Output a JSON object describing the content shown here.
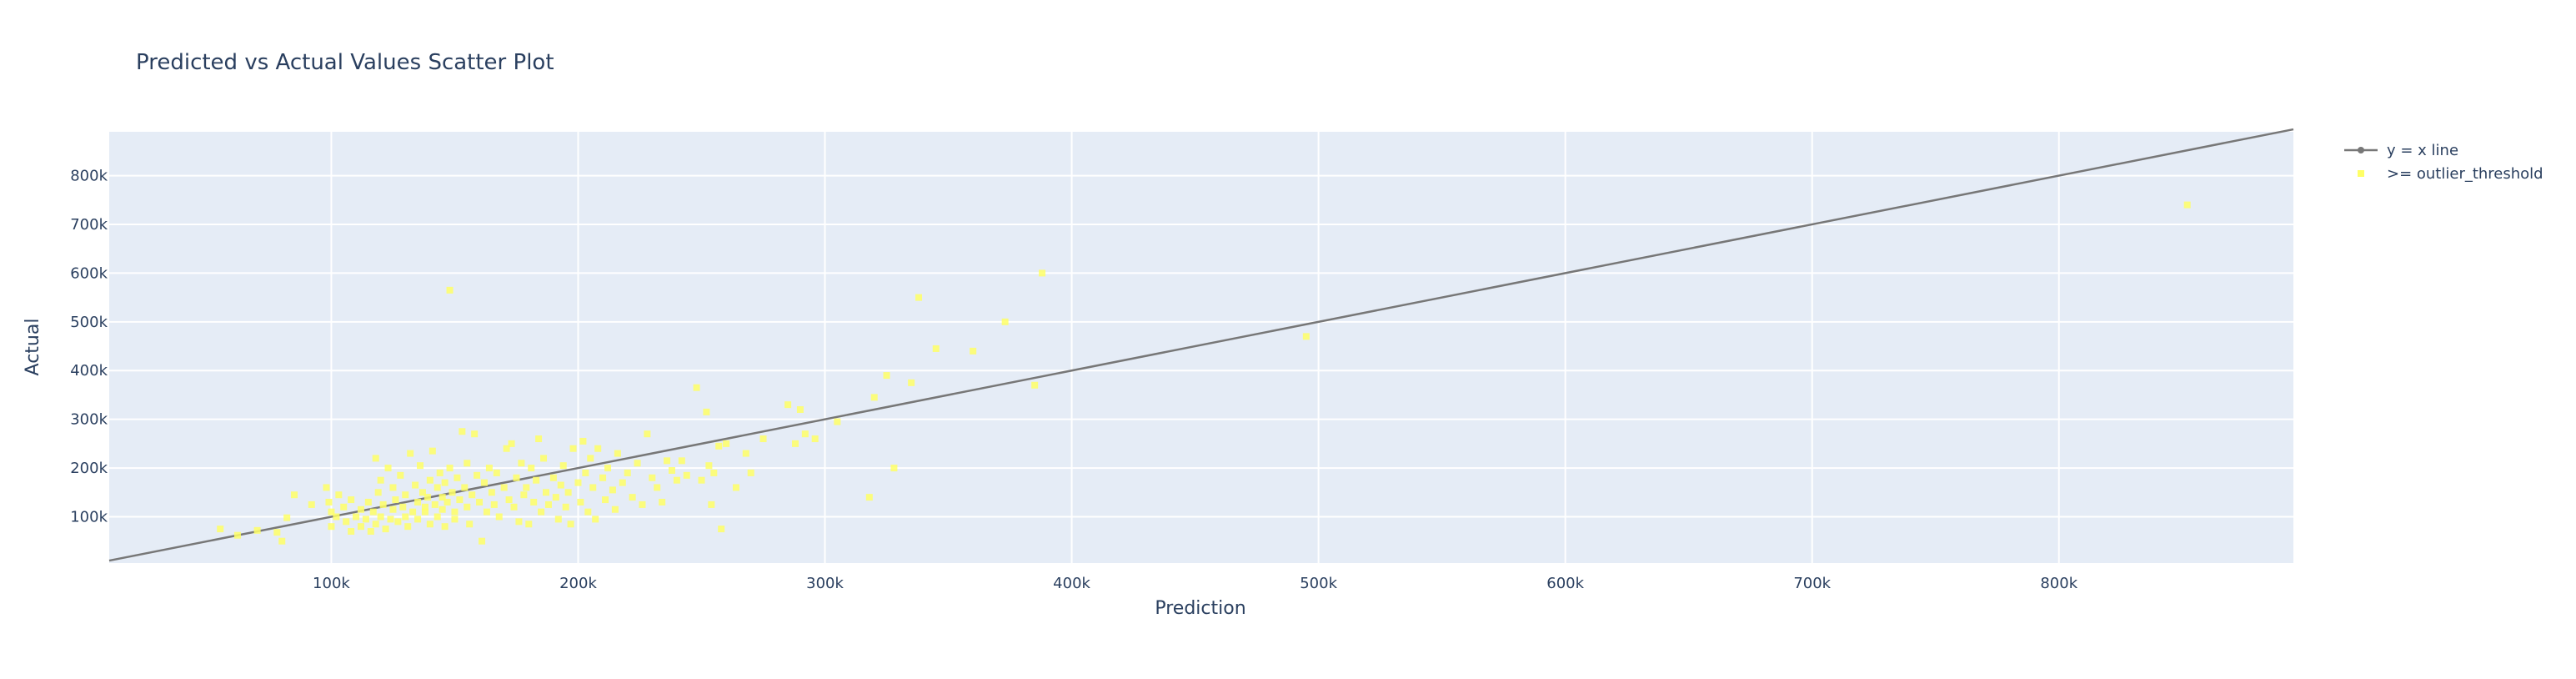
{
  "chart_data": {
    "type": "scatter",
    "title": "Predicted vs Actual Values Scatter Plot",
    "xlabel": "Prediction",
    "ylabel": "Actual",
    "xlim": [
      10000,
      895000
    ],
    "ylim": [
      5000,
      890000
    ],
    "x_ticks": [
      100000,
      200000,
      300000,
      400000,
      500000,
      600000,
      700000,
      800000
    ],
    "x_tick_labels": [
      "100k",
      "200k",
      "300k",
      "400k",
      "500k",
      "600k",
      "700k",
      "800k"
    ],
    "y_ticks": [
      100000,
      200000,
      300000,
      400000,
      500000,
      600000,
      700000,
      800000
    ],
    "y_tick_labels": [
      "100k",
      "200k",
      "300k",
      "400k",
      "500k",
      "600k",
      "700k",
      "800k"
    ],
    "grid": true,
    "legend_position": "top-right",
    "colors": {
      "plot_bg": "#e5ecf6",
      "grid": "#ffffff",
      "text": "#2a3f5f",
      "line": "#777777",
      "points": "#ffff66"
    },
    "series": [
      {
        "name": "y = x line",
        "mode": "line",
        "x": [
          10000,
          895000
        ],
        "y": [
          10000,
          895000
        ]
      },
      {
        "name": ">= outlier_threshold",
        "mode": "markers",
        "points": [
          [
            55000,
            75000
          ],
          [
            62000,
            62000
          ],
          [
            70000,
            72000
          ],
          [
            78000,
            68000
          ],
          [
            80000,
            50000
          ],
          [
            82000,
            98000
          ],
          [
            85000,
            145000
          ],
          [
            92000,
            125000
          ],
          [
            98000,
            160000
          ],
          [
            99000,
            130000
          ],
          [
            100000,
            80000
          ],
          [
            100000,
            110000
          ],
          [
            102000,
            100000
          ],
          [
            103000,
            145000
          ],
          [
            105000,
            120000
          ],
          [
            106000,
            90000
          ],
          [
            108000,
            70000
          ],
          [
            108000,
            135000
          ],
          [
            110000,
            100000
          ],
          [
            112000,
            80000
          ],
          [
            112000,
            115000
          ],
          [
            114000,
            95000
          ],
          [
            115000,
            130000
          ],
          [
            116000,
            70000
          ],
          [
            117000,
            110000
          ],
          [
            118000,
            85000
          ],
          [
            118000,
            220000
          ],
          [
            119000,
            150000
          ],
          [
            120000,
            100000
          ],
          [
            120000,
            175000
          ],
          [
            121000,
            125000
          ],
          [
            122000,
            75000
          ],
          [
            123000,
            200000
          ],
          [
            124000,
            95000
          ],
          [
            125000,
            115000
          ],
          [
            125000,
            160000
          ],
          [
            126000,
            135000
          ],
          [
            127000,
            90000
          ],
          [
            128000,
            185000
          ],
          [
            129000,
            120000
          ],
          [
            130000,
            100000
          ],
          [
            130000,
            145000
          ],
          [
            131000,
            80000
          ],
          [
            132000,
            230000
          ],
          [
            133000,
            110000
          ],
          [
            134000,
            165000
          ],
          [
            135000,
            95000
          ],
          [
            135000,
            130000
          ],
          [
            136000,
            205000
          ],
          [
            137000,
            150000
          ],
          [
            138000,
            110000
          ],
          [
            138000,
            120000
          ],
          [
            139000,
            140000
          ],
          [
            140000,
            85000
          ],
          [
            140000,
            175000
          ],
          [
            141000,
            235000
          ],
          [
            142000,
            125000
          ],
          [
            143000,
            100000
          ],
          [
            143000,
            160000
          ],
          [
            144000,
            190000
          ],
          [
            145000,
            115000
          ],
          [
            145000,
            140000
          ],
          [
            146000,
            80000
          ],
          [
            146000,
            170000
          ],
          [
            147000,
            130000
          ],
          [
            148000,
            565000
          ],
          [
            148000,
            200000
          ],
          [
            149000,
            150000
          ],
          [
            150000,
            110000
          ],
          [
            150000,
            95000
          ],
          [
            151000,
            180000
          ],
          [
            152000,
            135000
          ],
          [
            153000,
            275000
          ],
          [
            154000,
            160000
          ],
          [
            155000,
            120000
          ],
          [
            155000,
            210000
          ],
          [
            156000,
            85000
          ],
          [
            157000,
            145000
          ],
          [
            158000,
            270000
          ],
          [
            159000,
            185000
          ],
          [
            160000,
            130000
          ],
          [
            161000,
            50000
          ],
          [
            162000,
            170000
          ],
          [
            163000,
            110000
          ],
          [
            164000,
            200000
          ],
          [
            165000,
            150000
          ],
          [
            166000,
            125000
          ],
          [
            167000,
            190000
          ],
          [
            168000,
            100000
          ],
          [
            170000,
            160000
          ],
          [
            171000,
            240000
          ],
          [
            172000,
            135000
          ],
          [
            173000,
            250000
          ],
          [
            174000,
            120000
          ],
          [
            175000,
            180000
          ],
          [
            176000,
            90000
          ],
          [
            177000,
            210000
          ],
          [
            178000,
            145000
          ],
          [
            179000,
            160000
          ],
          [
            180000,
            85000
          ],
          [
            181000,
            200000
          ],
          [
            182000,
            130000
          ],
          [
            183000,
            175000
          ],
          [
            184000,
            260000
          ],
          [
            185000,
            110000
          ],
          [
            186000,
            220000
          ],
          [
            187000,
            150000
          ],
          [
            188000,
            125000
          ],
          [
            190000,
            180000
          ],
          [
            191000,
            140000
          ],
          [
            192000,
            95000
          ],
          [
            193000,
            165000
          ],
          [
            194000,
            205000
          ],
          [
            195000,
            120000
          ],
          [
            196000,
            150000
          ],
          [
            197000,
            85000
          ],
          [
            198000,
            240000
          ],
          [
            200000,
            170000
          ],
          [
            201000,
            130000
          ],
          [
            202000,
            255000
          ],
          [
            203000,
            190000
          ],
          [
            204000,
            110000
          ],
          [
            205000,
            220000
          ],
          [
            206000,
            160000
          ],
          [
            207000,
            95000
          ],
          [
            208000,
            240000
          ],
          [
            210000,
            180000
          ],
          [
            211000,
            135000
          ],
          [
            212000,
            200000
          ],
          [
            214000,
            155000
          ],
          [
            215000,
            115000
          ],
          [
            216000,
            230000
          ],
          [
            218000,
            170000
          ],
          [
            220000,
            190000
          ],
          [
            222000,
            140000
          ],
          [
            224000,
            210000
          ],
          [
            226000,
            125000
          ],
          [
            228000,
            270000
          ],
          [
            230000,
            180000
          ],
          [
            232000,
            160000
          ],
          [
            234000,
            130000
          ],
          [
            236000,
            215000
          ],
          [
            238000,
            195000
          ],
          [
            240000,
            175000
          ],
          [
            242000,
            215000
          ],
          [
            244000,
            185000
          ],
          [
            248000,
            365000
          ],
          [
            250000,
            175000
          ],
          [
            252000,
            315000
          ],
          [
            253000,
            205000
          ],
          [
            254000,
            125000
          ],
          [
            255000,
            190000
          ],
          [
            257000,
            245000
          ],
          [
            258000,
            75000
          ],
          [
            260000,
            250000
          ],
          [
            264000,
            160000
          ],
          [
            268000,
            230000
          ],
          [
            270000,
            190000
          ],
          [
            275000,
            260000
          ],
          [
            285000,
            330000
          ],
          [
            288000,
            250000
          ],
          [
            290000,
            320000
          ],
          [
            292000,
            270000
          ],
          [
            296000,
            260000
          ],
          [
            305000,
            295000
          ],
          [
            318000,
            140000
          ],
          [
            320000,
            345000
          ],
          [
            325000,
            390000
          ],
          [
            328000,
            200000
          ],
          [
            335000,
            375000
          ],
          [
            338000,
            550000
          ],
          [
            345000,
            445000
          ],
          [
            360000,
            440000
          ],
          [
            373000,
            500000
          ],
          [
            385000,
            370000
          ],
          [
            388000,
            600000
          ],
          [
            495000,
            470000
          ],
          [
            852000,
            740000
          ]
        ]
      }
    ]
  }
}
